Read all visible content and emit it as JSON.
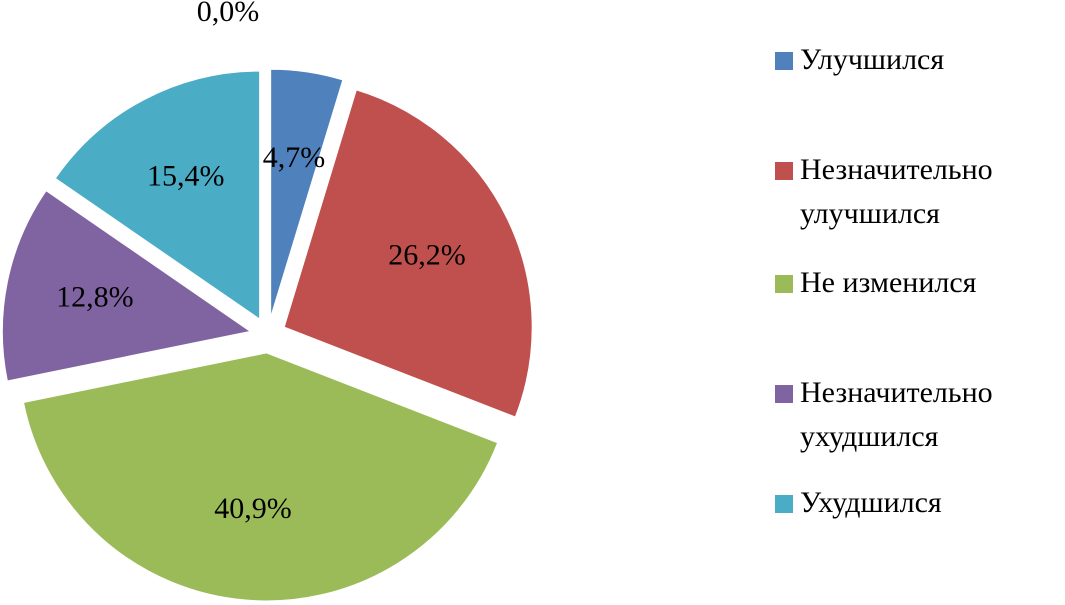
{
  "chart_data": {
    "type": "pie",
    "categories": [
      "Улучшился",
      "Незначительно улучшился",
      "Не изменился",
      "Незначительно ухудшился",
      "Ухудшился",
      null
    ],
    "values": [
      4.7,
      26.2,
      40.9,
      12.8,
      15.4,
      0.0
    ],
    "value_labels": [
      "4,7%",
      "26,2%",
      "40,9%",
      "12,8%",
      "15,4%",
      "0,0%"
    ],
    "colors": [
      "#4f81bd",
      "#c0504d",
      "#9bbb59",
      "#8064a2",
      "#4bacc6",
      "#f79646"
    ],
    "legend": "right"
  }
}
